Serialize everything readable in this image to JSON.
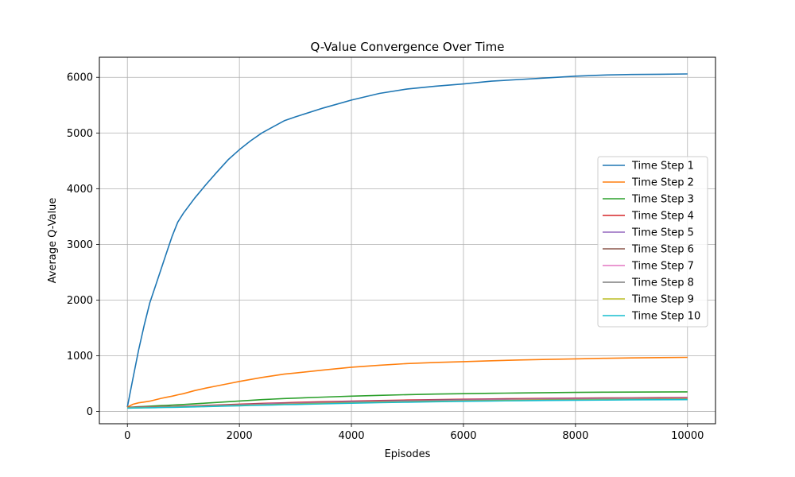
{
  "chart_data": {
    "type": "line",
    "title": "Q-Value Convergence Over Time",
    "xlabel": "Episodes",
    "ylabel": "Average Q-Value",
    "xlim": [
      -500,
      10500
    ],
    "ylim": [
      -220,
      6360
    ],
    "xticks": [
      0,
      2000,
      4000,
      6000,
      8000,
      10000
    ],
    "yticks": [
      0,
      1000,
      2000,
      3000,
      4000,
      5000,
      6000
    ],
    "grid": true,
    "legend_position": "center-right",
    "x": [
      0,
      100,
      200,
      300,
      400,
      500,
      600,
      700,
      800,
      900,
      1000,
      1200,
      1400,
      1600,
      1800,
      2000,
      2200,
      2400,
      2600,
      2800,
      3000,
      3500,
      4000,
      4500,
      5000,
      5500,
      6000,
      6500,
      7000,
      7500,
      8000,
      8500,
      9000,
      9500,
      10000
    ],
    "series": [
      {
        "name": "Time Step 1",
        "color": "#1f77b4",
        "values": [
          80,
          600,
          1100,
          1550,
          1950,
          2250,
          2550,
          2850,
          3150,
          3400,
          3560,
          3830,
          4070,
          4300,
          4520,
          4700,
          4860,
          5000,
          5110,
          5220,
          5290,
          5450,
          5590,
          5710,
          5790,
          5840,
          5880,
          5930,
          5960,
          5990,
          6020,
          6040,
          6050,
          6055,
          6060
        ]
      },
      {
        "name": "Time Step 2",
        "color": "#ff7f0e",
        "values": [
          80,
          130,
          155,
          170,
          185,
          210,
          235,
          255,
          275,
          300,
          320,
          375,
          420,
          460,
          500,
          540,
          575,
          610,
          640,
          670,
          690,
          745,
          795,
          830,
          860,
          880,
          895,
          910,
          925,
          935,
          945,
          955,
          962,
          968,
          972
        ]
      },
      {
        "name": "Time Step 3",
        "color": "#2ca02c",
        "values": [
          75,
          80,
          85,
          90,
          95,
          100,
          105,
          110,
          115,
          120,
          125,
          138,
          150,
          163,
          175,
          188,
          200,
          212,
          222,
          232,
          240,
          258,
          275,
          290,
          302,
          312,
          320,
          327,
          333,
          338,
          342,
          346,
          348,
          350,
          352
        ]
      },
      {
        "name": "Time Step 4",
        "color": "#d62728",
        "values": [
          72,
          75,
          78,
          80,
          82,
          84,
          86,
          88,
          90,
          93,
          95,
          103,
          110,
          117,
          124,
          131,
          138,
          145,
          150,
          156,
          162,
          175,
          187,
          197,
          206,
          213,
          220,
          226,
          231,
          235,
          239,
          243,
          246,
          248,
          250
        ]
      },
      {
        "name": "Time Step 5",
        "color": "#9467bd",
        "values": [
          70,
          73,
          75,
          77,
          79,
          81,
          83,
          85,
          87,
          89,
          91,
          98,
          105,
          111,
          118,
          124,
          131,
          137,
          142,
          148,
          153,
          166,
          178,
          188,
          197,
          205,
          212,
          218,
          223,
          228,
          232,
          236,
          239,
          241,
          243
        ]
      },
      {
        "name": "Time Step 6",
        "color": "#8c564b",
        "values": [
          68,
          71,
          73,
          75,
          77,
          79,
          81,
          83,
          85,
          87,
          89,
          95,
          102,
          108,
          114,
          120,
          126,
          132,
          137,
          143,
          148,
          161,
          173,
          183,
          192,
          200,
          207,
          213,
          218,
          223,
          227,
          231,
          234,
          236,
          238
        ]
      },
      {
        "name": "Time Step 7",
        "color": "#e377c2",
        "values": [
          66,
          68,
          70,
          72,
          74,
          76,
          78,
          80,
          82,
          84,
          86,
          92,
          98,
          104,
          110,
          116,
          121,
          127,
          132,
          137,
          142,
          155,
          167,
          177,
          186,
          194,
          201,
          207,
          212,
          217,
          221,
          225,
          228,
          230,
          232
        ]
      },
      {
        "name": "Time Step 8",
        "color": "#7f7f7f",
        "values": [
          64,
          66,
          68,
          70,
          72,
          74,
          76,
          78,
          80,
          82,
          84,
          89,
          95,
          100,
          106,
          111,
          117,
          122,
          127,
          132,
          137,
          149,
          161,
          171,
          180,
          188,
          195,
          201,
          206,
          211,
          215,
          219,
          222,
          224,
          226
        ]
      },
      {
        "name": "Time Step 9",
        "color": "#bcbd22",
        "values": [
          62,
          64,
          66,
          68,
          70,
          72,
          74,
          75,
          77,
          79,
          81,
          86,
          91,
          97,
          102,
          107,
          112,
          117,
          122,
          127,
          131,
          143,
          154,
          164,
          173,
          181,
          188,
          194,
          199,
          204,
          208,
          212,
          215,
          217,
          219
        ]
      },
      {
        "name": "Time Step 10",
        "color": "#17becf",
        "values": [
          60,
          62,
          64,
          65,
          67,
          69,
          71,
          72,
          74,
          76,
          78,
          83,
          88,
          93,
          98,
          103,
          108,
          113,
          117,
          122,
          126,
          137,
          148,
          158,
          167,
          175,
          182,
          188,
          193,
          198,
          202,
          206,
          209,
          211,
          213
        ]
      }
    ]
  }
}
